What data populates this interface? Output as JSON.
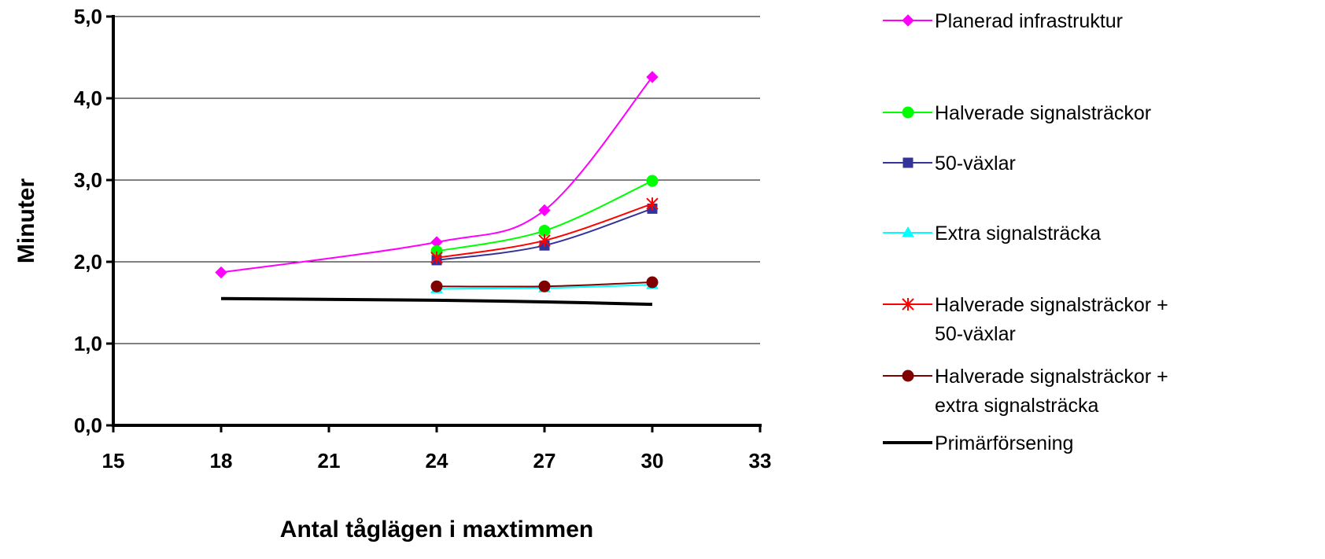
{
  "chart_data": {
    "type": "line",
    "title": "",
    "xlabel": "Antal tåglägen i maxtimmen",
    "ylabel": "Minuter",
    "xlim": [
      15,
      33
    ],
    "ylim": [
      0,
      5
    ],
    "x_ticks": [
      "15",
      "18",
      "21",
      "24",
      "27",
      "30",
      "33"
    ],
    "y_ticks": [
      "0,0",
      "1,0",
      "2,0",
      "3,0",
      "4,0",
      "5,0"
    ],
    "grid": "horizontal",
    "legend_position": "right",
    "series": [
      {
        "name": "Planerad infrastruktur",
        "legend_lines": [
          "Planerad infrastruktur"
        ],
        "color": "#FF00FF",
        "marker": "diamond",
        "x": [
          18,
          24,
          27,
          30
        ],
        "y": [
          1.87,
          2.24,
          2.63,
          4.26
        ]
      },
      {
        "name": "Halverade signalsträckor",
        "legend_lines": [
          "Halverade signalsträckor"
        ],
        "color": "#00FF00",
        "marker": "circle",
        "x": [
          24,
          27,
          30
        ],
        "y": [
          2.13,
          2.38,
          2.99
        ]
      },
      {
        "name": "50-växlar",
        "legend_lines": [
          "50-växlar"
        ],
        "color": "#333399",
        "marker": "square",
        "x": [
          24,
          27,
          30
        ],
        "y": [
          2.02,
          2.2,
          2.65
        ]
      },
      {
        "name": "Extra signalsträcka",
        "legend_lines": [
          "Extra signalsträcka"
        ],
        "color": "#00FFFF",
        "marker": "triangle",
        "x": [
          24,
          27,
          30
        ],
        "y": [
          1.67,
          1.68,
          1.72
        ]
      },
      {
        "name": "Halverade signalsträckor + 50-växlar",
        "legend_lines": [
          "Halverade signalsträckor +",
          "50-växlar"
        ],
        "color": "#FF0000",
        "marker": "star",
        "x": [
          24,
          27,
          30
        ],
        "y": [
          2.05,
          2.26,
          2.71
        ]
      },
      {
        "name": "Halverade signalsträckor + extra signalsträcka",
        "legend_lines": [
          "Halverade signalsträckor +",
          "extra signalsträcka"
        ],
        "color": "#800000",
        "marker": "circle",
        "x": [
          24,
          27,
          30
        ],
        "y": [
          1.7,
          1.7,
          1.75
        ]
      },
      {
        "name": "Primärförsening",
        "legend_lines": [
          "Primärförsening"
        ],
        "color": "#000000",
        "marker": "none",
        "x": [
          18,
          24,
          27,
          30
        ],
        "y": [
          1.55,
          1.53,
          1.51,
          1.48
        ]
      }
    ]
  }
}
